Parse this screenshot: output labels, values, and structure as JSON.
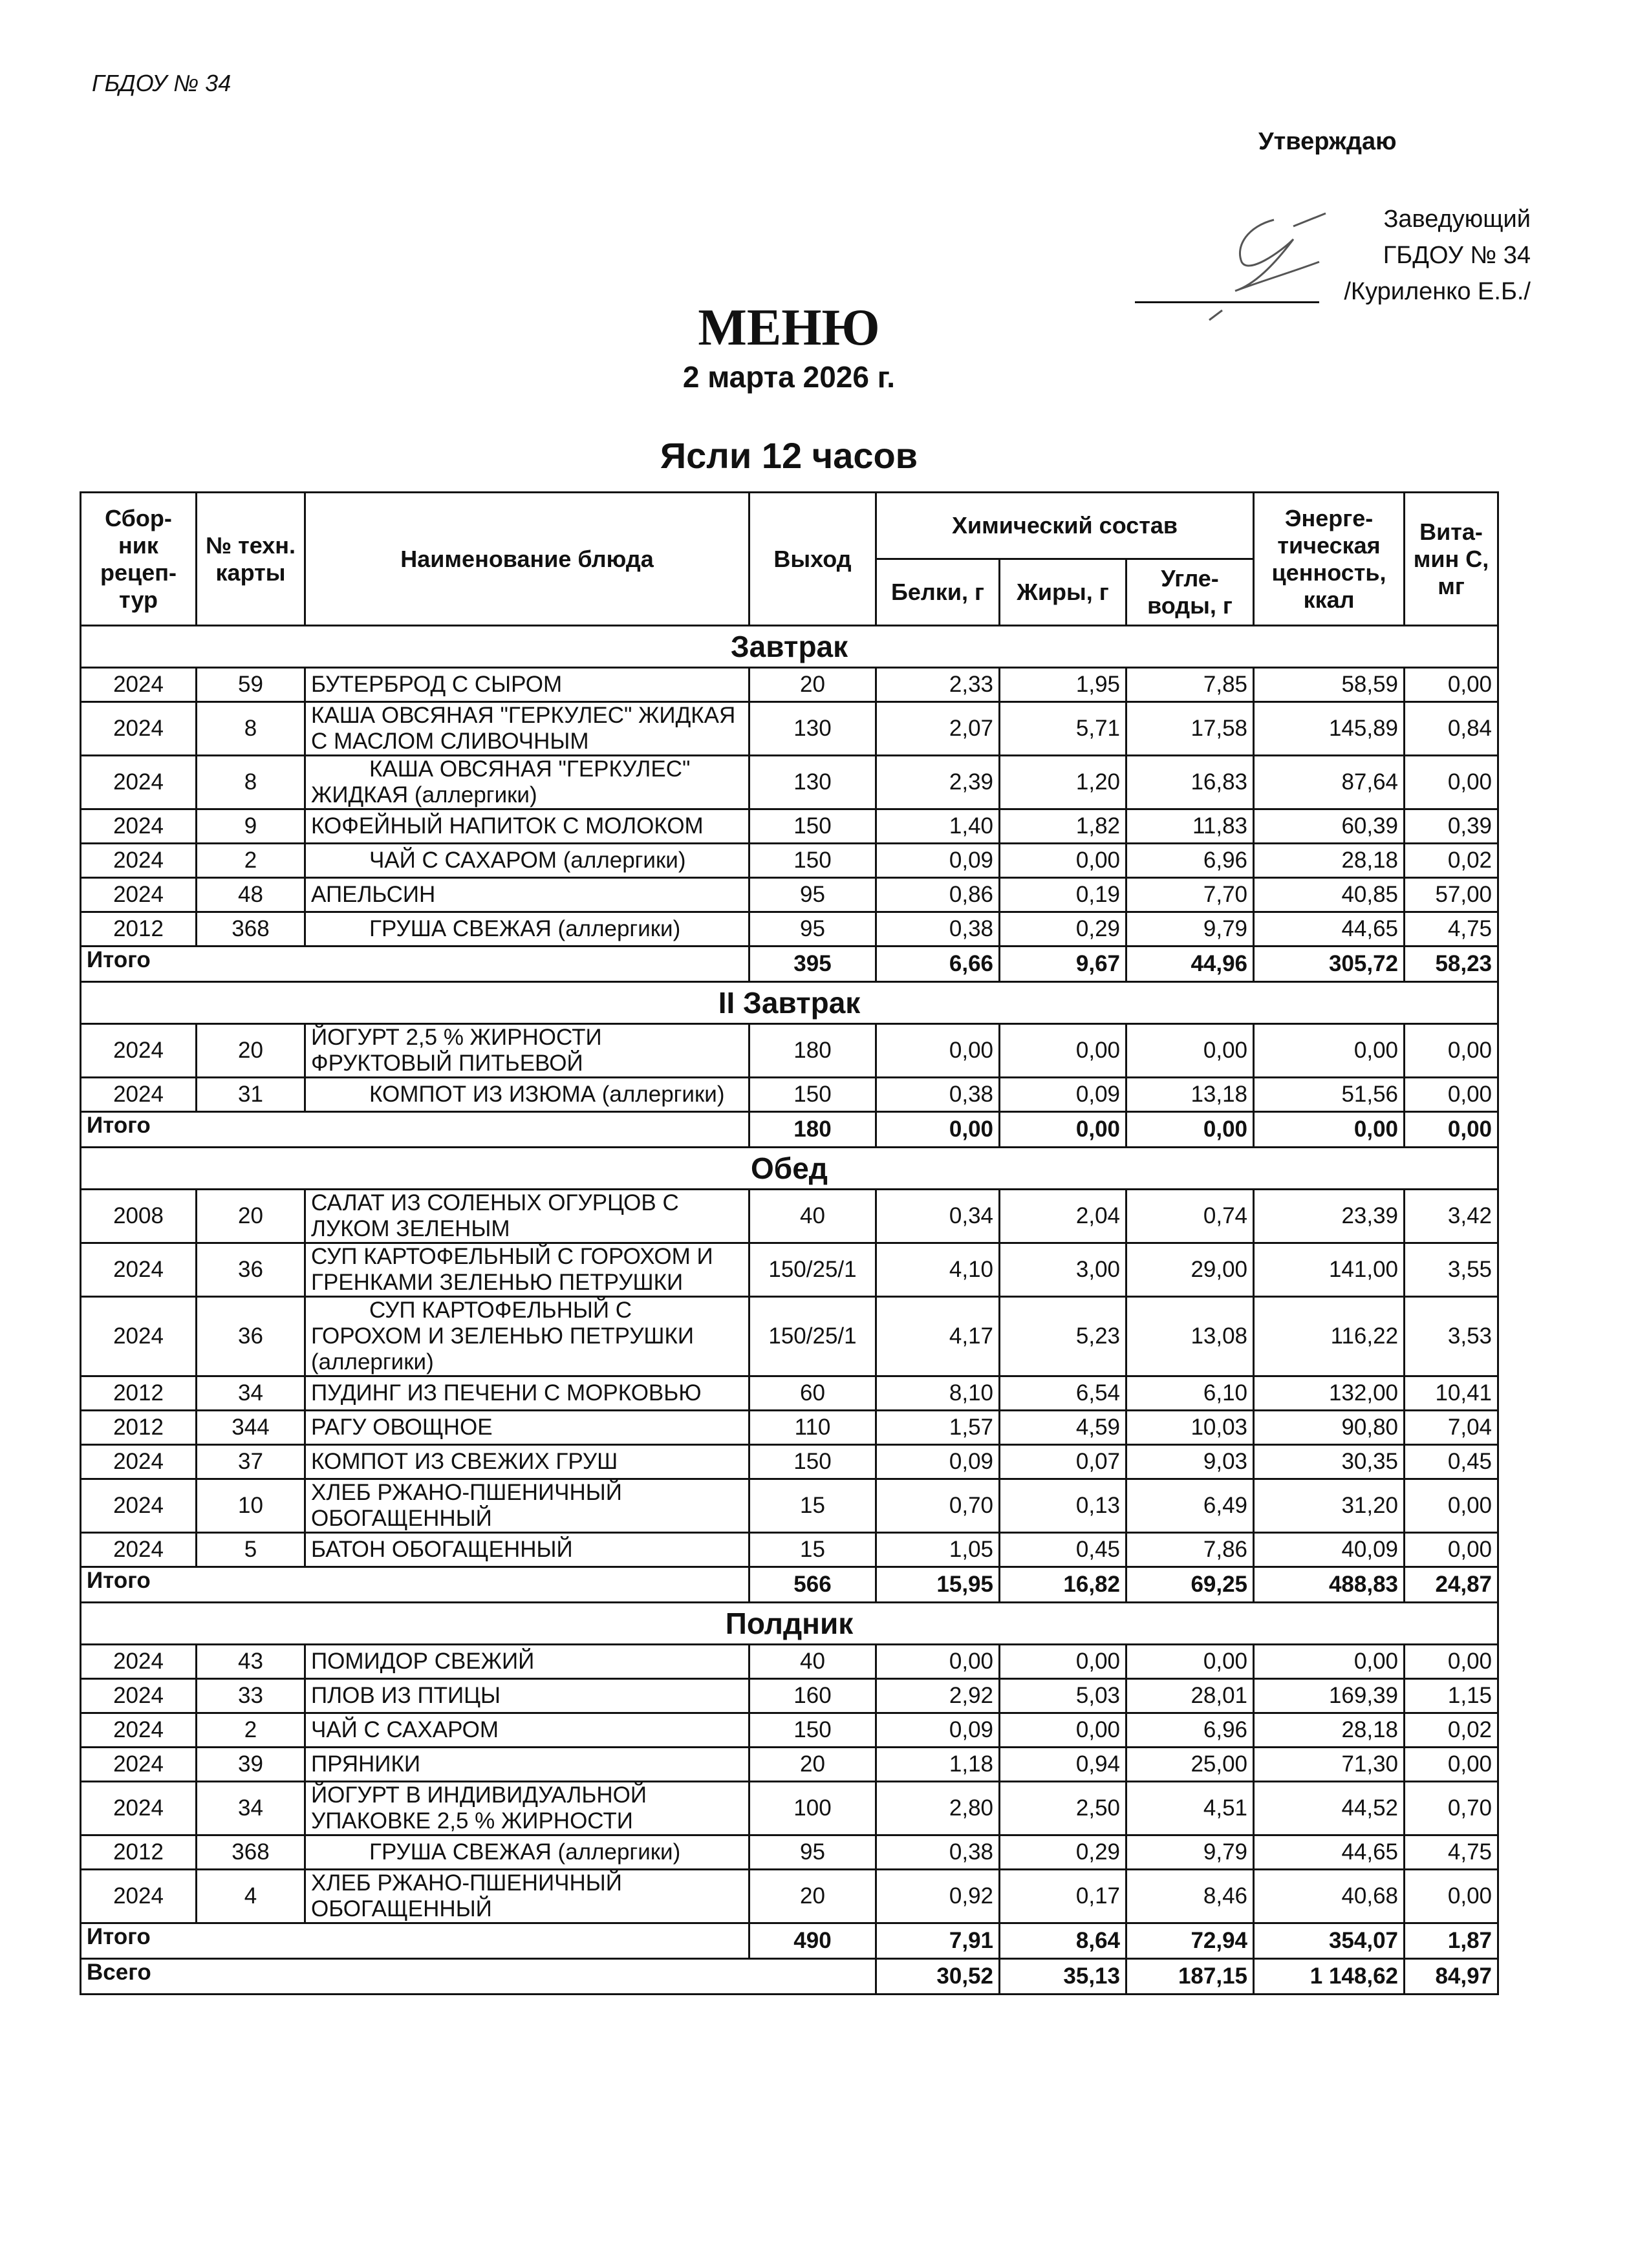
{
  "header": {
    "organization": "ГБДОУ № 34",
    "approve": "Утверждаю",
    "approver_lines": [
      "Заведующий",
      "ГБДОУ № 34",
      "/Куриленко Е.Б./"
    ],
    "title": "МЕНЮ",
    "date": "2 марта 2026 г.",
    "group": "Ясли 12 часов"
  },
  "table": {
    "columns": {
      "collection": "Сбор-ник рецеп-тур",
      "tech_card": "№ техн. карты",
      "dish": "Наименование блюда",
      "output": "Выход",
      "chem": "Химический состав",
      "protein": "Белки, г",
      "fat": "Жиры, г",
      "carbs": "Угле-воды, г",
      "energy": "Энерге-тическая ценность, ккал",
      "vitc": "Вита-мин С, мг"
    },
    "sections": [
      {
        "title": "Завтрак",
        "rows": [
          [
            "2024",
            "59",
            "БУТЕРБРОД С СЫРОМ",
            "20",
            "2,33",
            "1,95",
            "7,85",
            "58,59",
            "0,00"
          ],
          [
            "2024",
            "8",
            "КАША ОВСЯНАЯ \"ГЕРКУЛЕС\" ЖИДКАЯ С МАСЛОМ СЛИВОЧНЫМ",
            "130",
            "2,07",
            "5,71",
            "17,58",
            "145,89",
            "0,84"
          ],
          [
            "2024",
            "8",
            "КАША ОВСЯНАЯ \"ГЕРКУЛЕС\" ЖИДКАЯ (аллергики)",
            "130",
            "2,39",
            "1,20",
            "16,83",
            "87,64",
            "0,00"
          ],
          [
            "2024",
            "9",
            "КОФЕЙНЫЙ НАПИТОК С МОЛОКОМ",
            "150",
            "1,40",
            "1,82",
            "11,83",
            "60,39",
            "0,39"
          ],
          [
            "2024",
            "2",
            "ЧАЙ С САХАРОМ (аллергики)",
            "150",
            "0,09",
            "0,00",
            "6,96",
            "28,18",
            "0,02"
          ],
          [
            "2024",
            "48",
            "АПЕЛЬСИН",
            "95",
            "0,86",
            "0,19",
            "7,70",
            "40,85",
            "57,00"
          ],
          [
            "2012",
            "368",
            "ГРУША СВЕЖАЯ (аллергики)",
            "95",
            "0,38",
            "0,29",
            "9,79",
            "44,65",
            "4,75"
          ]
        ],
        "indented": [
          2,
          4,
          6
        ],
        "total": {
          "label": "Итого",
          "values": [
            "395",
            "6,66",
            "9,67",
            "44,96",
            "305,72",
            "58,23"
          ]
        }
      },
      {
        "title": "II Завтрак",
        "rows": [
          [
            "2024",
            "20",
            "ЙОГУРТ 2,5 % ЖИРНОСТИ ФРУКТОВЫЙ ПИТЬЕВОЙ",
            "180",
            "0,00",
            "0,00",
            "0,00",
            "0,00",
            "0,00"
          ],
          [
            "2024",
            "31",
            "КОМПОТ ИЗ ИЗЮМА (аллергики)",
            "150",
            "0,38",
            "0,09",
            "13,18",
            "51,56",
            "0,00"
          ]
        ],
        "indented": [
          1
        ],
        "total": {
          "label": "Итого",
          "values": [
            "180",
            "0,00",
            "0,00",
            "0,00",
            "0,00",
            "0,00"
          ]
        }
      },
      {
        "title": "Обед",
        "rows": [
          [
            "2008",
            "20",
            "САЛАТ ИЗ СОЛЕНЫХ ОГУРЦОВ С ЛУКОМ ЗЕЛЕНЫМ",
            "40",
            "0,34",
            "2,04",
            "0,74",
            "23,39",
            "3,42"
          ],
          [
            "2024",
            "36",
            "СУП КАРТОФЕЛЬНЫЙ С ГОРОХОМ И ГРЕНКАМИ ЗЕЛЕНЬЮ ПЕТРУШКИ",
            "150/25/1",
            "4,10",
            "3,00",
            "29,00",
            "141,00",
            "3,55"
          ],
          [
            "2024",
            "36",
            "СУП КАРТОФЕЛЬНЫЙ С ГОРОХОМ И ЗЕЛЕНЬЮ ПЕТРУШКИ (аллергики)",
            "150/25/1",
            "4,17",
            "5,23",
            "13,08",
            "116,22",
            "3,53"
          ],
          [
            "2012",
            "34",
            "ПУДИНГ ИЗ ПЕЧЕНИ С МОРКОВЬЮ",
            "60",
            "8,10",
            "6,54",
            "6,10",
            "132,00",
            "10,41"
          ],
          [
            "2012",
            "344",
            "РАГУ ОВОЩНОЕ",
            "110",
            "1,57",
            "4,59",
            "10,03",
            "90,80",
            "7,04"
          ],
          [
            "2024",
            "37",
            "КОМПОТ ИЗ СВЕЖИХ ГРУШ",
            "150",
            "0,09",
            "0,07",
            "9,03",
            "30,35",
            "0,45"
          ],
          [
            "2024",
            "10",
            "ХЛЕБ РЖАНО-ПШЕНИЧНЫЙ ОБОГАЩЕННЫЙ",
            "15",
            "0,70",
            "0,13",
            "6,49",
            "31,20",
            "0,00"
          ],
          [
            "2024",
            "5",
            "БАТОН ОБОГАЩЕННЫЙ",
            "15",
            "1,05",
            "0,45",
            "7,86",
            "40,09",
            "0,00"
          ]
        ],
        "indented": [
          2
        ],
        "total": {
          "label": "Итого",
          "values": [
            "566",
            "15,95",
            "16,82",
            "69,25",
            "488,83",
            "24,87"
          ]
        }
      },
      {
        "title": "Полдник",
        "rows": [
          [
            "2024",
            "43",
            "ПОМИДОР СВЕЖИЙ",
            "40",
            "0,00",
            "0,00",
            "0,00",
            "0,00",
            "0,00"
          ],
          [
            "2024",
            "33",
            "ПЛОВ ИЗ ПТИЦЫ",
            "160",
            "2,92",
            "5,03",
            "28,01",
            "169,39",
            "1,15"
          ],
          [
            "2024",
            "2",
            "ЧАЙ С САХАРОМ",
            "150",
            "0,09",
            "0,00",
            "6,96",
            "28,18",
            "0,02"
          ],
          [
            "2024",
            "39",
            "ПРЯНИКИ",
            "20",
            "1,18",
            "0,94",
            "25,00",
            "71,30",
            "0,00"
          ],
          [
            "2024",
            "34",
            "ЙОГУРТ В ИНДИВИДУАЛЬНОЙ УПАКОВКЕ 2,5 % ЖИРНОСТИ",
            "100",
            "2,80",
            "2,50",
            "4,51",
            "44,52",
            "0,70"
          ],
          [
            "2012",
            "368",
            "ГРУША СВЕЖАЯ (аллергики)",
            "95",
            "0,38",
            "0,29",
            "9,79",
            "44,65",
            "4,75"
          ],
          [
            "2024",
            "4",
            "ХЛЕБ РЖАНО-ПШЕНИЧНЫЙ ОБОГАЩЕННЫЙ",
            "20",
            "0,92",
            "0,17",
            "8,46",
            "40,68",
            "0,00"
          ]
        ],
        "indented": [
          5
        ],
        "total": {
          "label": "Итого",
          "values": [
            "490",
            "7,91",
            "8,64",
            "72,94",
            "354,07",
            "1,87"
          ]
        }
      }
    ],
    "grand_total": {
      "label": "Всего",
      "values": [
        "30,52",
        "35,13",
        "187,15",
        "1 148,62",
        "84,97"
      ]
    }
  }
}
